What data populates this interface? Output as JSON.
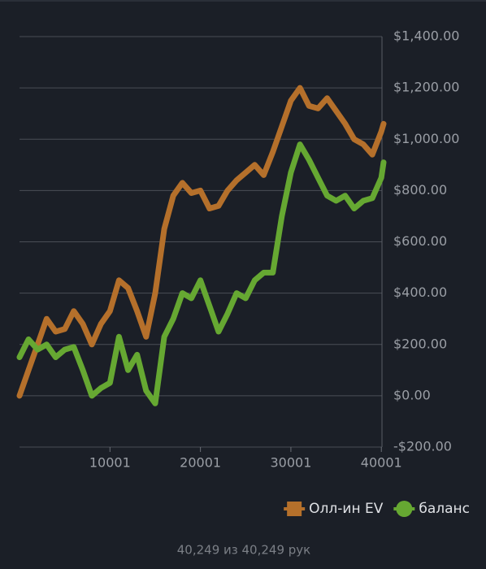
{
  "chart_data": {
    "type": "line",
    "x": [
      1,
      1001,
      2001,
      3001,
      4001,
      5001,
      6001,
      7001,
      8001,
      9001,
      10001,
      11001,
      12001,
      13001,
      14001,
      15001,
      16001,
      17001,
      18001,
      19001,
      20001,
      21001,
      22001,
      23001,
      24001,
      25001,
      26001,
      27001,
      28001,
      29001,
      30001,
      31001,
      32001,
      33001,
      34001,
      35001,
      36001,
      37001,
      38001,
      39001,
      40001,
      40249
    ],
    "series": [
      {
        "name": "Олл-ин EV",
        "color": "#b5702b",
        "marker": "square",
        "values": [
          0,
          100,
          200,
          300,
          250,
          260,
          330,
          280,
          200,
          280,
          330,
          450,
          420,
          330,
          230,
          400,
          650,
          780,
          830,
          790,
          800,
          730,
          740,
          800,
          840,
          870,
          900,
          860,
          950,
          1050,
          1150,
          1200,
          1130,
          1120,
          1160,
          1110,
          1060,
          1000,
          980,
          940,
          1030,
          1060
        ]
      },
      {
        "name": "баланс",
        "color": "#66a832",
        "marker": "circle",
        "values": [
          150,
          220,
          180,
          200,
          150,
          180,
          190,
          100,
          0,
          30,
          50,
          230,
          100,
          160,
          20,
          -30,
          230,
          300,
          400,
          380,
          450,
          350,
          250,
          320,
          400,
          380,
          450,
          480,
          480,
          700,
          870,
          980,
          920,
          850,
          780,
          760,
          780,
          730,
          760,
          770,
          850,
          910
        ]
      }
    ],
    "xlim": [
      1,
      40249
    ],
    "xticks": [
      10001,
      20001,
      30001,
      40001
    ],
    "ylim": [
      -200,
      1400
    ],
    "yticks": [
      {
        "value": -200,
        "label": "-$200.00"
      },
      {
        "value": 0,
        "label": "$0.00"
      },
      {
        "value": 200,
        "label": "$200.00"
      },
      {
        "value": 400,
        "label": "$400.00"
      },
      {
        "value": 600,
        "label": "$600.00"
      },
      {
        "value": 800,
        "label": "$800.00"
      },
      {
        "value": 1000,
        "label": "$1,000.00"
      },
      {
        "value": 1200,
        "label": "$1,200.00"
      },
      {
        "value": 1400,
        "label": "$1,400.00"
      }
    ],
    "grid": true,
    "legend": "bottom-right"
  },
  "footer": "40,249 из 40,249 рук"
}
